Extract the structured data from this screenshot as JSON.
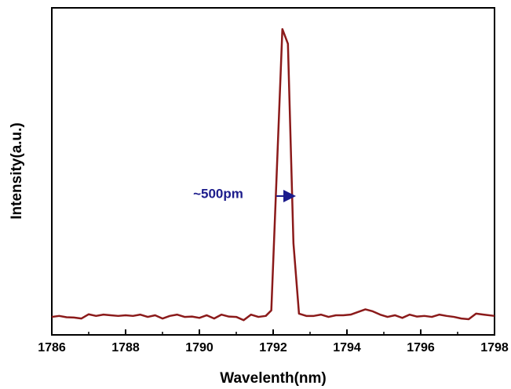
{
  "chart_data": {
    "type": "line",
    "xlabel": "Wavelenth(nm)",
    "ylabel": "Intensity(a.u.)",
    "annotation": "~500pm",
    "annotation_color": "#1c1c8c",
    "xlim": [
      1786,
      1798
    ],
    "xticks": [
      1786,
      1788,
      1790,
      1792,
      1794,
      1796,
      1798
    ],
    "xminorticks": [
      1787,
      1789,
      1791,
      1793,
      1795,
      1797
    ],
    "ylim": [
      0,
      1
    ],
    "series": [
      {
        "color": "#8b1a1a",
        "x": [
          1786.0,
          1786.2,
          1786.4,
          1786.6,
          1786.8,
          1787.0,
          1787.2,
          1787.4,
          1787.6,
          1787.8,
          1788.0,
          1788.2,
          1788.4,
          1788.6,
          1788.8,
          1789.0,
          1789.2,
          1789.4,
          1789.6,
          1789.8,
          1790.0,
          1790.2,
          1790.4,
          1790.6,
          1790.8,
          1791.0,
          1791.2,
          1791.4,
          1791.6,
          1791.8,
          1791.95,
          1792.25,
          1792.4,
          1792.55,
          1792.7,
          1792.9,
          1793.1,
          1793.3,
          1793.5,
          1793.7,
          1793.9,
          1794.1,
          1794.3,
          1794.5,
          1794.7,
          1794.9,
          1795.1,
          1795.3,
          1795.5,
          1795.7,
          1795.9,
          1796.1,
          1796.3,
          1796.5,
          1796.7,
          1796.9,
          1797.1,
          1797.3,
          1797.5,
          1797.7,
          1798.0
        ],
        "values": [
          0.055,
          0.058,
          0.054,
          0.053,
          0.05,
          0.063,
          0.058,
          0.062,
          0.06,
          0.058,
          0.06,
          0.058,
          0.062,
          0.055,
          0.06,
          0.05,
          0.058,
          0.062,
          0.055,
          0.056,
          0.052,
          0.06,
          0.05,
          0.062,
          0.056,
          0.055,
          0.045,
          0.062,
          0.055,
          0.058,
          0.075,
          0.935,
          0.89,
          0.28,
          0.065,
          0.058,
          0.058,
          0.062,
          0.055,
          0.06,
          0.06,
          0.062,
          0.07,
          0.078,
          0.072,
          0.062,
          0.055,
          0.06,
          0.052,
          0.062,
          0.056,
          0.058,
          0.055,
          0.062,
          0.058,
          0.055,
          0.05,
          0.048,
          0.065,
          0.062,
          0.058
        ]
      }
    ]
  }
}
